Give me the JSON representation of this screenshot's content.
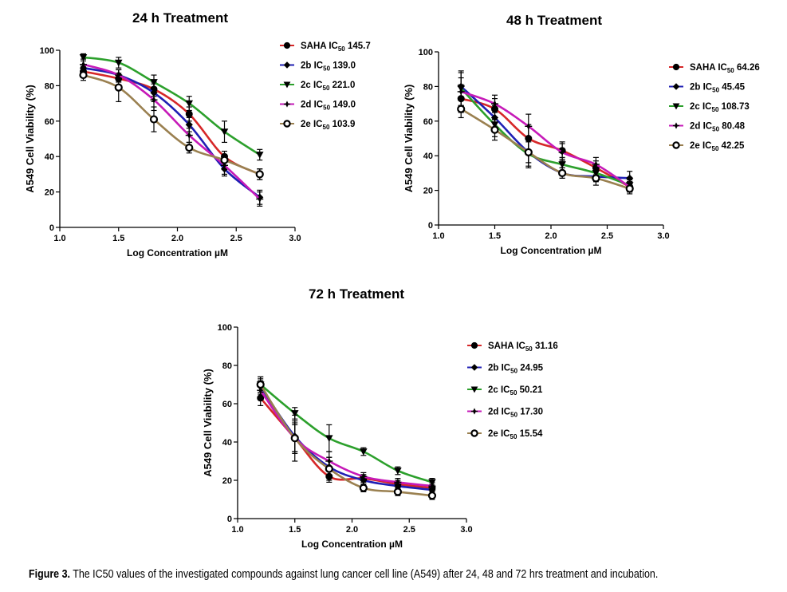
{
  "caption": {
    "label": "Figure 3.",
    "text": "The IC50 values of the investigated compounds against lung cancer cell line (A549) after 24, 48 and 72 hrs treatment and incubation."
  },
  "colors": {
    "SAHA": "#d62728",
    "2b": "#1f1fb4",
    "2c": "#2ca02c",
    "2d": "#c61ab8",
    "2e": "#9a8050",
    "axis": "#000000"
  },
  "chart_data": [
    {
      "type": "line",
      "title": "24 h Treatment",
      "xlabel": "Log Concentration µM",
      "ylabel": "A549 Cell Viability (%)",
      "xlim": [
        1.0,
        3.0
      ],
      "ylim": [
        0,
        100
      ],
      "xticks": [
        "1.0",
        "1.5",
        "2.0",
        "2.5",
        "3.0"
      ],
      "yticks": [
        "0",
        "20",
        "40",
        "60",
        "80",
        "100"
      ],
      "x": [
        1.2,
        1.5,
        1.8,
        2.1,
        2.4,
        2.7
      ],
      "series": [
        {
          "name": "SAHA",
          "ic50": "145.7",
          "marker": "circle",
          "color_key": "SAHA",
          "values": [
            88,
            84,
            78,
            64,
            40,
            30
          ],
          "errors": [
            3,
            2,
            4,
            4,
            3,
            3
          ]
        },
        {
          "name": "2b",
          "ic50": "139.0",
          "marker": "diamond",
          "color_key": "2b",
          "values": [
            90,
            86,
            76,
            58,
            33,
            17
          ],
          "errors": [
            2,
            3,
            5,
            4,
            4,
            4
          ]
        },
        {
          "name": "2c",
          "ic50": "221.0",
          "marker": "triangle-down",
          "color_key": "2c",
          "values": [
            96,
            93,
            82,
            70,
            54,
            41
          ],
          "errors": [
            2,
            3,
            4,
            4,
            6,
            3
          ]
        },
        {
          "name": "2d",
          "ic50": "149.0",
          "marker": "plus",
          "color_key": "2d",
          "values": [
            92,
            86,
            72,
            52,
            35,
            16
          ],
          "errors": [
            3,
            3,
            6,
            4,
            5,
            4
          ]
        },
        {
          "name": "2e",
          "ic50": "103.9",
          "marker": "open-circle",
          "color_key": "2e",
          "values": [
            86,
            79,
            61,
            45,
            38,
            30
          ],
          "errors": [
            3,
            8,
            7,
            3,
            3,
            3
          ]
        }
      ]
    },
    {
      "type": "line",
      "title": "48 h Treatment",
      "xlabel": "Log Concentration µM",
      "ylabel": "A549 Cell Viability (%)",
      "xlim": [
        1.0,
        3.0
      ],
      "ylim": [
        0,
        100
      ],
      "xticks": [
        "1.0",
        "1.5",
        "2.0",
        "2.5",
        "3.0"
      ],
      "yticks": [
        "0",
        "20",
        "40",
        "60",
        "80",
        "100"
      ],
      "x": [
        1.2,
        1.5,
        1.8,
        2.1,
        2.4,
        2.7
      ],
      "series": [
        {
          "name": "SAHA",
          "ic50": "64.26",
          "marker": "circle",
          "color_key": "SAHA",
          "values": [
            73,
            67,
            50,
            43,
            33,
            22
          ],
          "errors": [
            8,
            6,
            8,
            5,
            4,
            3
          ]
        },
        {
          "name": "2b",
          "ic50": "45.45",
          "marker": "diamond",
          "color_key": "2b",
          "values": [
            80,
            62,
            42,
            30,
            28,
            27
          ],
          "errors": [
            8,
            7,
            8,
            3,
            3,
            4
          ]
        },
        {
          "name": "2c",
          "ic50": "108.73",
          "marker": "triangle-down",
          "color_key": "2c",
          "values": [
            79,
            58,
            41,
            35,
            30,
            23
          ],
          "errors": [
            10,
            7,
            8,
            4,
            4,
            3
          ]
        },
        {
          "name": "2d",
          "ic50": "80.48",
          "marker": "plus",
          "color_key": "2d",
          "values": [
            77,
            70,
            57,
            42,
            35,
            22
          ],
          "errors": [
            8,
            5,
            7,
            5,
            4,
            3
          ]
        },
        {
          "name": "2e",
          "ic50": "42.25",
          "marker": "open-circle",
          "color_key": "2e",
          "values": [
            67,
            55,
            42,
            30,
            27,
            21
          ],
          "errors": [
            5,
            6,
            6,
            3,
            4,
            3
          ]
        }
      ]
    },
    {
      "type": "line",
      "title": "72 h Treatment",
      "xlabel": "Log Concentration µM",
      "ylabel": "A549 Cell Viability (%)",
      "xlim": [
        1.0,
        3.0
      ],
      "ylim": [
        0,
        100
      ],
      "xticks": [
        "1.0",
        "1.5",
        "2.0",
        "2.5",
        "3.0"
      ],
      "yticks": [
        "0",
        "20",
        "40",
        "60",
        "80",
        "100"
      ],
      "x": [
        1.2,
        1.5,
        1.8,
        2.1,
        2.4,
        2.7
      ],
      "series": [
        {
          "name": "SAHA",
          "ic50": "31.16",
          "marker": "circle",
          "color_key": "SAHA",
          "values": [
            63,
            42,
            22,
            21,
            18,
            16
          ],
          "errors": [
            4,
            7,
            3,
            2,
            2,
            2
          ]
        },
        {
          "name": "2b",
          "ic50": "24.95",
          "marker": "diamond",
          "color_key": "2b",
          "values": [
            69,
            43,
            27,
            20,
            17,
            15
          ],
          "errors": [
            4,
            8,
            5,
            2,
            2,
            2
          ]
        },
        {
          "name": "2c",
          "ic50": "50.21",
          "marker": "triangle-down",
          "color_key": "2c",
          "values": [
            70,
            55,
            42,
            35,
            25,
            19
          ],
          "errors": [
            4,
            3,
            7,
            2,
            2,
            2
          ]
        },
        {
          "name": "2d",
          "ic50": "17.30",
          "marker": "plus",
          "color_key": "2d",
          "values": [
            67,
            42,
            30,
            22,
            19,
            17
          ],
          "errors": [
            5,
            8,
            5,
            2,
            2,
            2
          ]
        },
        {
          "name": "2e",
          "ic50": "15.54",
          "marker": "open-circle",
          "color_key": "2e",
          "values": [
            70,
            42,
            26,
            16,
            14,
            12
          ],
          "errors": [
            4,
            12,
            6,
            2,
            2,
            2
          ]
        }
      ]
    }
  ]
}
